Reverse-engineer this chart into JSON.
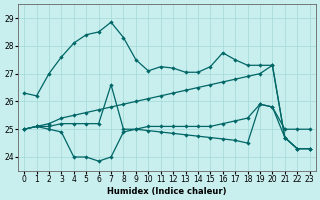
{
  "background_color": "#c8eeee",
  "grid_color": "#aadddd",
  "line_color": "#006666",
  "xlabel": "Humidex (Indice chaleur)",
  "xlim": [
    -0.5,
    23.5
  ],
  "ylim": [
    23.5,
    29.5
  ],
  "yticks": [
    24,
    25,
    26,
    27,
    28,
    29
  ],
  "xticks": [
    0,
    1,
    2,
    3,
    4,
    5,
    6,
    7,
    8,
    9,
    10,
    11,
    12,
    13,
    14,
    15,
    16,
    17,
    18,
    19,
    20,
    21,
    22,
    23
  ],
  "line1": {
    "x": [
      0,
      1,
      2,
      3,
      4,
      5,
      6,
      7,
      8,
      9,
      10,
      11,
      12,
      13,
      14,
      15,
      16,
      17,
      18,
      19,
      20,
      21,
      22,
      23
    ],
    "y": [
      26.3,
      26.2,
      27.0,
      27.6,
      28.1,
      28.4,
      28.5,
      28.85,
      28.3,
      27.5,
      27.1,
      27.25,
      27.2,
      27.05,
      27.05,
      27.25,
      27.75,
      27.5,
      27.3,
      27.3,
      27.3,
      24.7,
      24.3,
      24.3
    ]
  },
  "line2": {
    "x": [
      0,
      1,
      2,
      3,
      4,
      5,
      6,
      7,
      8,
      9,
      10,
      11,
      12,
      13,
      14,
      15,
      16,
      17,
      18,
      19,
      20,
      21,
      22,
      23
    ],
    "y": [
      25.0,
      25.1,
      25.2,
      25.4,
      25.5,
      25.6,
      25.7,
      25.8,
      25.9,
      26.0,
      26.1,
      26.2,
      26.3,
      26.4,
      26.5,
      26.6,
      26.7,
      26.8,
      26.9,
      27.0,
      27.3,
      24.7,
      24.3,
      24.3
    ]
  },
  "line3": {
    "x": [
      0,
      1,
      2,
      3,
      4,
      5,
      6,
      7,
      8,
      9,
      10,
      11,
      12,
      13,
      14,
      15,
      16,
      17,
      18,
      19,
      20,
      21,
      22,
      23
    ],
    "y": [
      25.0,
      25.1,
      25.1,
      25.2,
      25.2,
      25.2,
      25.2,
      26.6,
      25.0,
      25.0,
      25.1,
      25.1,
      25.1,
      25.1,
      25.1,
      25.1,
      25.2,
      25.3,
      25.4,
      25.9,
      25.8,
      25.0,
      25.0,
      25.0
    ]
  },
  "line4": {
    "x": [
      0,
      1,
      2,
      3,
      4,
      5,
      6,
      7,
      8,
      9,
      10,
      11,
      12,
      13,
      14,
      15,
      16,
      17,
      18,
      19,
      20,
      21,
      22,
      23
    ],
    "y": [
      25.0,
      25.1,
      25.0,
      24.9,
      24.0,
      24.0,
      23.85,
      24.0,
      24.9,
      25.0,
      24.95,
      24.9,
      24.85,
      24.8,
      24.75,
      24.7,
      24.65,
      24.6,
      24.5,
      25.9,
      25.8,
      24.7,
      24.3,
      24.3
    ]
  }
}
